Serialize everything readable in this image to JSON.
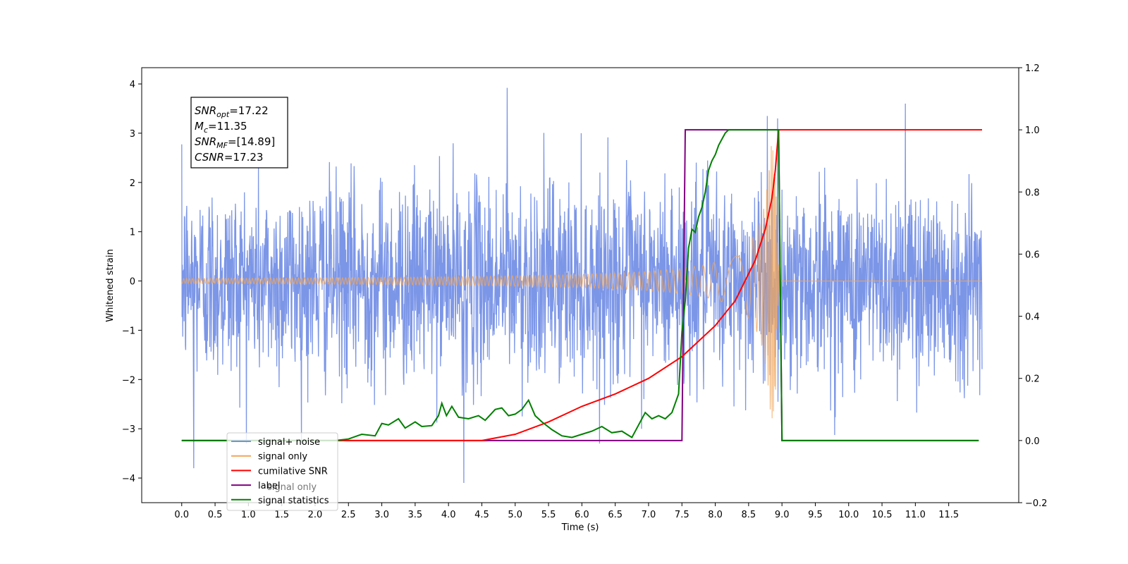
{
  "chart_data": {
    "type": "line",
    "title": "",
    "xlabel": "Time (s)",
    "ylabel": "Whitened strain",
    "xlim": [
      -0.6,
      12.55
    ],
    "ylim": [
      -4.5,
      4.33
    ],
    "y2lim": [
      -0.2,
      1.2
    ],
    "x_ticks": [
      0.0,
      0.5,
      1.0,
      1.5,
      2.0,
      2.5,
      3.0,
      3.5,
      4.0,
      4.5,
      5.0,
      5.5,
      6.0,
      6.5,
      7.0,
      7.5,
      8.0,
      8.5,
      9.0,
      9.5,
      10.0,
      10.5,
      11.0,
      11.5
    ],
    "x_tick_labels": [
      "0.0",
      "0.5",
      "1.0",
      "1.5",
      "2.0",
      "2.5",
      "3.0",
      "3.5",
      "4.0",
      "4.5",
      "5.0",
      "5.5",
      "6.0",
      "6.5",
      "7.0",
      "7.5",
      "8.0",
      "8.5",
      "9.0",
      "9.5",
      "10.0",
      "10.5",
      "11.0",
      "11.5"
    ],
    "y_ticks": [
      -4,
      -3,
      -2,
      -1,
      0,
      1,
      2,
      3,
      4
    ],
    "y_tick_labels": [
      "−4",
      "−3",
      "−2",
      "−1",
      "0",
      "1",
      "2",
      "3",
      "4"
    ],
    "y2_ticks": [
      -0.2,
      0.0,
      0.2,
      0.4,
      0.6,
      0.8,
      1.0,
      1.2
    ],
    "y2_tick_labels": [
      "−0.2",
      "0.0",
      "0.2",
      "0.4",
      "0.6",
      "0.8",
      "1.0",
      "1.2"
    ],
    "grid": false,
    "legend_position": "lower-left",
    "annotation": [
      {
        "main": "SNR",
        "sub": "opt",
        "rest": "=17.22"
      },
      {
        "main": "M",
        "sub": "c",
        "rest": "=11.35"
      },
      {
        "main": "SNR",
        "sub": "MF",
        "rest": "=[14.89]"
      },
      {
        "main": "CSNR",
        "sub": "",
        "rest": "=17.23"
      }
    ],
    "series": [
      {
        "name": "signal+ noise",
        "axis": "left",
        "color": "#7590e6",
        "description_t_range": [
          0.0,
          12.0
        ],
        "typical_amplitude": 1.0,
        "peak_values": [
          {
            "x": 0.18,
            "y": -3.8
          },
          {
            "x": 4.23,
            "y": -4.1
          },
          {
            "x": 4.88,
            "y": 3.92
          },
          {
            "x": 10.85,
            "y": 3.6
          },
          {
            "x": 8.78,
            "y": 3.35
          }
        ]
      },
      {
        "name": "signal only",
        "axis": "left",
        "color": "#f2a55a",
        "merger_time": 8.9,
        "peak_amplitude": 2.8
      },
      {
        "name": "cumilative SNR",
        "axis": "right",
        "color": "#ff0000",
        "x": [
          0.0,
          4.5,
          5.0,
          5.5,
          6.0,
          6.5,
          7.0,
          7.5,
          8.0,
          8.3,
          8.6,
          8.75,
          8.85,
          8.9,
          8.95,
          12.0
        ],
        "values": [
          0.0,
          0.0,
          0.02,
          0.06,
          0.11,
          0.15,
          0.2,
          0.27,
          0.37,
          0.45,
          0.58,
          0.68,
          0.78,
          0.87,
          1.0,
          1.0
        ]
      },
      {
        "name": "label",
        "axis": "right",
        "color": "#800080",
        "x": [
          0.0,
          7.5,
          7.55,
          8.95,
          9.0,
          11.95
        ],
        "values": [
          0.0,
          0.0,
          1.0,
          1.0,
          0.0,
          0.0
        ]
      },
      {
        "name": "signal statistics",
        "axis": "right",
        "color": "#008000",
        "x": [
          0.0,
          2.3,
          2.5,
          2.7,
          2.9,
          3.0,
          3.1,
          3.25,
          3.35,
          3.5,
          3.6,
          3.75,
          3.85,
          3.9,
          3.97,
          4.05,
          4.15,
          4.3,
          4.45,
          4.55,
          4.7,
          4.8,
          4.9,
          5.0,
          5.1,
          5.2,
          5.3,
          5.4,
          5.55,
          5.7,
          5.85,
          6.0,
          6.15,
          6.3,
          6.45,
          6.6,
          6.75,
          6.85,
          6.95,
          7.05,
          7.15,
          7.25,
          7.35,
          7.45,
          7.5,
          7.55,
          7.6,
          7.65,
          7.7,
          7.75,
          7.8,
          7.85,
          7.9,
          7.95,
          8.0,
          8.05,
          8.1,
          8.15,
          8.2,
          8.3,
          8.45,
          8.6,
          8.75,
          8.85,
          8.95,
          9.0,
          11.95
        ],
        "values": [
          0.0,
          0.0,
          0.005,
          0.02,
          0.015,
          0.055,
          0.05,
          0.07,
          0.04,
          0.06,
          0.045,
          0.048,
          0.08,
          0.12,
          0.08,
          0.11,
          0.075,
          0.07,
          0.08,
          0.065,
          0.1,
          0.105,
          0.08,
          0.085,
          0.1,
          0.13,
          0.08,
          0.06,
          0.035,
          0.015,
          0.01,
          0.02,
          0.03,
          0.045,
          0.025,
          0.03,
          0.01,
          0.05,
          0.09,
          0.07,
          0.08,
          0.07,
          0.09,
          0.15,
          0.35,
          0.45,
          0.62,
          0.68,
          0.67,
          0.72,
          0.75,
          0.8,
          0.87,
          0.9,
          0.92,
          0.95,
          0.97,
          0.99,
          1.0,
          1.0,
          1.0,
          1.0,
          1.0,
          1.0,
          1.0,
          0.0,
          0.0
        ]
      },
      {
        "name": "signal only",
        "axis": "legend-only",
        "color": "#800080",
        "legend_overlapped": true
      }
    ],
    "legend_entries": [
      {
        "label": "signal+ noise",
        "color": "#7590e6"
      },
      {
        "label": "signal only",
        "color": "#f2a55a"
      },
      {
        "label": "cumilative SNR",
        "color": "#ff0000"
      },
      {
        "label": "label",
        "color": "#800080"
      },
      {
        "label": "signal statistics",
        "color": "#008000"
      }
    ],
    "hidden_legend_text": "signal only"
  }
}
